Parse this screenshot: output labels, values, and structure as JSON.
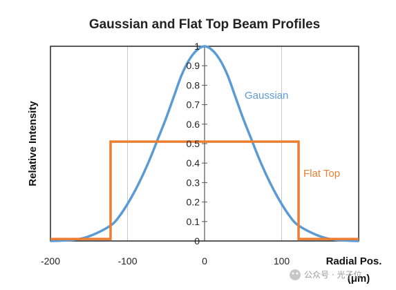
{
  "chart_data": {
    "type": "line",
    "title": "Gaussian and Flat Top Beam Profiles",
    "ylabel": "Relative Intensity",
    "xlabel": "Radial Pos.",
    "xlabel_unit": "(μm)",
    "xlim": [
      -200,
      200
    ],
    "ylim": [
      0,
      1
    ],
    "xticks": [
      {
        "value": -200,
        "label": "-200"
      },
      {
        "value": -100,
        "label": "-100"
      },
      {
        "value": 0,
        "label": "0"
      },
      {
        "value": 100,
        "label": "100"
      }
    ],
    "yticks": [
      {
        "value": 0,
        "label": "0"
      },
      {
        "value": 0.1,
        "label": "0.1"
      },
      {
        "value": 0.2,
        "label": "0.2"
      },
      {
        "value": 0.3,
        "label": "0.3"
      },
      {
        "value": 0.4,
        "label": "0.4"
      },
      {
        "value": 0.5,
        "label": "0.5"
      },
      {
        "value": 0.6,
        "label": "0.6"
      },
      {
        "value": 0.7,
        "label": "0.7"
      },
      {
        "value": 0.8,
        "label": "0.8"
      },
      {
        "value": 0.9,
        "label": "0.9"
      },
      {
        "value": 1,
        "label": "1"
      }
    ],
    "grid": "vertical",
    "series": [
      {
        "name": "Gaussian",
        "color": "#5b9bd5",
        "x": [
          -200,
          -180,
          -160,
          -140,
          -120,
          -110,
          -100,
          -90,
          -80,
          -70,
          -60,
          -50,
          -40,
          -30,
          -20,
          -10,
          0,
          10,
          20,
          30,
          40,
          50,
          60,
          70,
          80,
          90,
          100,
          110,
          120,
          140,
          160,
          180,
          200
        ],
        "y": [
          0.0,
          0.003,
          0.012,
          0.04,
          0.085,
          0.13,
          0.19,
          0.26,
          0.34,
          0.43,
          0.53,
          0.63,
          0.74,
          0.85,
          0.93,
          0.98,
          1.0,
          0.98,
          0.93,
          0.85,
          0.74,
          0.63,
          0.53,
          0.43,
          0.34,
          0.26,
          0.19,
          0.13,
          0.085,
          0.04,
          0.012,
          0.003,
          0.0
        ]
      },
      {
        "name": "Flat Top",
        "color": "#ed7d31",
        "x": [
          -200,
          -122,
          -122,
          122,
          122,
          200
        ],
        "y": [
          0.01,
          0.01,
          0.51,
          0.51,
          0.01,
          0.01
        ]
      }
    ]
  },
  "watermark": "公众号 · 光子位"
}
